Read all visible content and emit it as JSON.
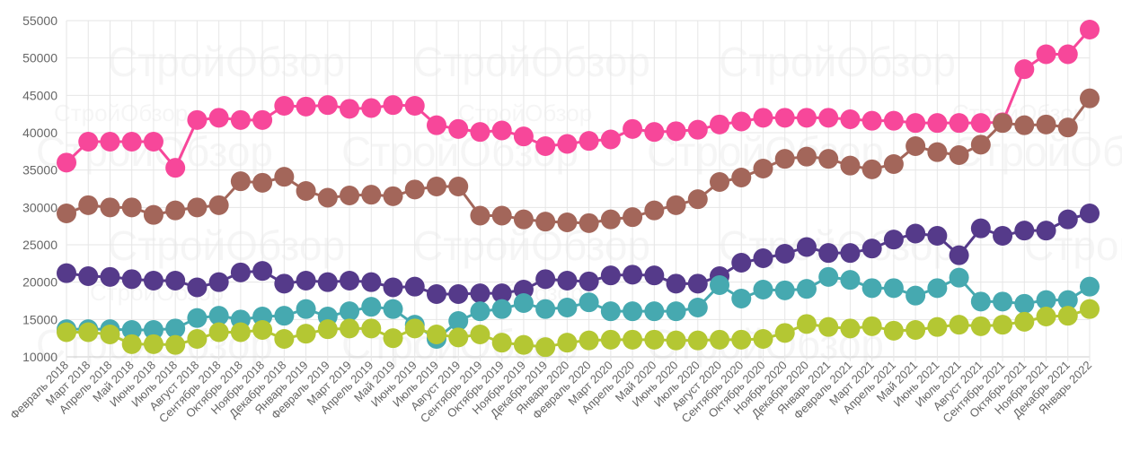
{
  "chart_data": {
    "type": "line",
    "title": "",
    "xlabel": "",
    "ylabel": "",
    "ylim": [
      10000,
      55000
    ],
    "yticks": [
      "10000",
      "15000",
      "20000",
      "25000",
      "30000",
      "35000",
      "40000",
      "45000",
      "50000",
      "55000"
    ],
    "grid": true,
    "legend": "none",
    "watermark": "СтройОбзор",
    "categories": [
      "Февраль 2018",
      "Март 2018",
      "Апрель 2018",
      "Май 2018",
      "Июнь 2018",
      "Июль 2018",
      "Август 2018",
      "Сентябрь 2018",
      "Октябрь 2018",
      "Ноябрь 2018",
      "Декабрь 2018",
      "Январь 2019",
      "Февраль 2019",
      "Март 2019",
      "Апрель 2019",
      "Май 2019",
      "Июнь 2019",
      "Июль 2019",
      "Август 2019",
      "Сентябрь 2019",
      "Октябрь 2019",
      "Ноябрь 2019",
      "Декабрь 2019",
      "Январь 2020",
      "Февраль 2020",
      "Март 2020",
      "Апрель 2020",
      "Май 2020",
      "Июнь 2020",
      "Июль 2020",
      "Август 2020",
      "Сентябрь 2020",
      "Октябрь 2020",
      "Ноябрь 2020",
      "Декабрь 2020",
      "Январь 2021",
      "Февраль 2021",
      "Март 2021",
      "Апрель 2021",
      "Май 2021",
      "Июнь 2021",
      "Июль 2021",
      "Август 2021",
      "Сентябрь 2021",
      "Октябрь 2021",
      "Ноябрь 2021",
      "Декабрь 2021",
      "Январь 2022"
    ],
    "series": [
      {
        "name": "pink",
        "color": "#f7479a",
        "values": [
          36000,
          38800,
          38800,
          38800,
          38800,
          35300,
          41700,
          42000,
          41700,
          41700,
          43600,
          43500,
          43700,
          43200,
          43300,
          43700,
          43600,
          41000,
          40500,
          40100,
          40300,
          39500,
          38200,
          38500,
          38900,
          39100,
          40500,
          40100,
          40200,
          40400,
          41100,
          41500,
          42000,
          42000,
          42000,
          42000,
          41800,
          41600,
          41600,
          41300,
          41300,
          41300,
          41300,
          41400,
          48500,
          50500,
          50500,
          53800
        ]
      },
      {
        "name": "brown",
        "color": "#a3665a",
        "values": [
          29200,
          30300,
          30000,
          30000,
          29000,
          29600,
          30000,
          30300,
          33500,
          33300,
          34100,
          32200,
          31300,
          31600,
          31700,
          31500,
          32400,
          32800,
          32800,
          28900,
          28900,
          28400,
          28100,
          28000,
          27900,
          28400,
          28700,
          29600,
          30300,
          31100,
          33400,
          34000,
          35200,
          36500,
          36800,
          36500,
          35600,
          35100,
          35800,
          38200,
          37400,
          37000,
          38400,
          41300,
          41000,
          41100,
          40700,
          44600
        ]
      },
      {
        "name": "purple",
        "color": "#553a8a",
        "values": [
          21200,
          20800,
          20700,
          20400,
          20200,
          20200,
          19300,
          20000,
          21300,
          21500,
          19800,
          20200,
          20000,
          20200,
          20000,
          19300,
          19400,
          18400,
          18400,
          18500,
          18500,
          19000,
          20400,
          20200,
          20100,
          20900,
          21000,
          20900,
          19800,
          19800,
          20800,
          22600,
          23200,
          23800,
          24700,
          23900,
          23900,
          24500,
          25700,
          26500,
          26200,
          23600,
          27200,
          26200,
          26900,
          26900,
          28400,
          29200
        ]
      },
      {
        "name": "teal",
        "color": "#46a9b0",
        "values": [
          13700,
          13700,
          13700,
          13600,
          13600,
          13800,
          15200,
          15500,
          15000,
          15400,
          15500,
          16400,
          15400,
          16100,
          16700,
          16400,
          14300,
          12400,
          14800,
          16100,
          16400,
          17200,
          16400,
          16600,
          17300,
          16100,
          16100,
          16100,
          16100,
          16600,
          19600,
          17800,
          19000,
          18900,
          19100,
          20700,
          20300,
          19200,
          19200,
          18200,
          19200,
          20600,
          17400,
          17400,
          17100,
          17600,
          17600,
          19400
        ]
      },
      {
        "name": "green",
        "color": "#b4c733",
        "values": [
          13300,
          13300,
          13000,
          11700,
          11700,
          11600,
          12400,
          13300,
          13300,
          13600,
          12400,
          13100,
          13700,
          13800,
          13800,
          12500,
          13800,
          13000,
          12600,
          13000,
          11900,
          11600,
          11300,
          11900,
          12200,
          12300,
          12300,
          12300,
          12200,
          12200,
          12300,
          12300,
          12400,
          13200,
          14400,
          14000,
          13800,
          14100,
          13500,
          13600,
          14000,
          14300,
          14100,
          14300,
          14700,
          15400,
          15500,
          16400
        ]
      }
    ]
  }
}
